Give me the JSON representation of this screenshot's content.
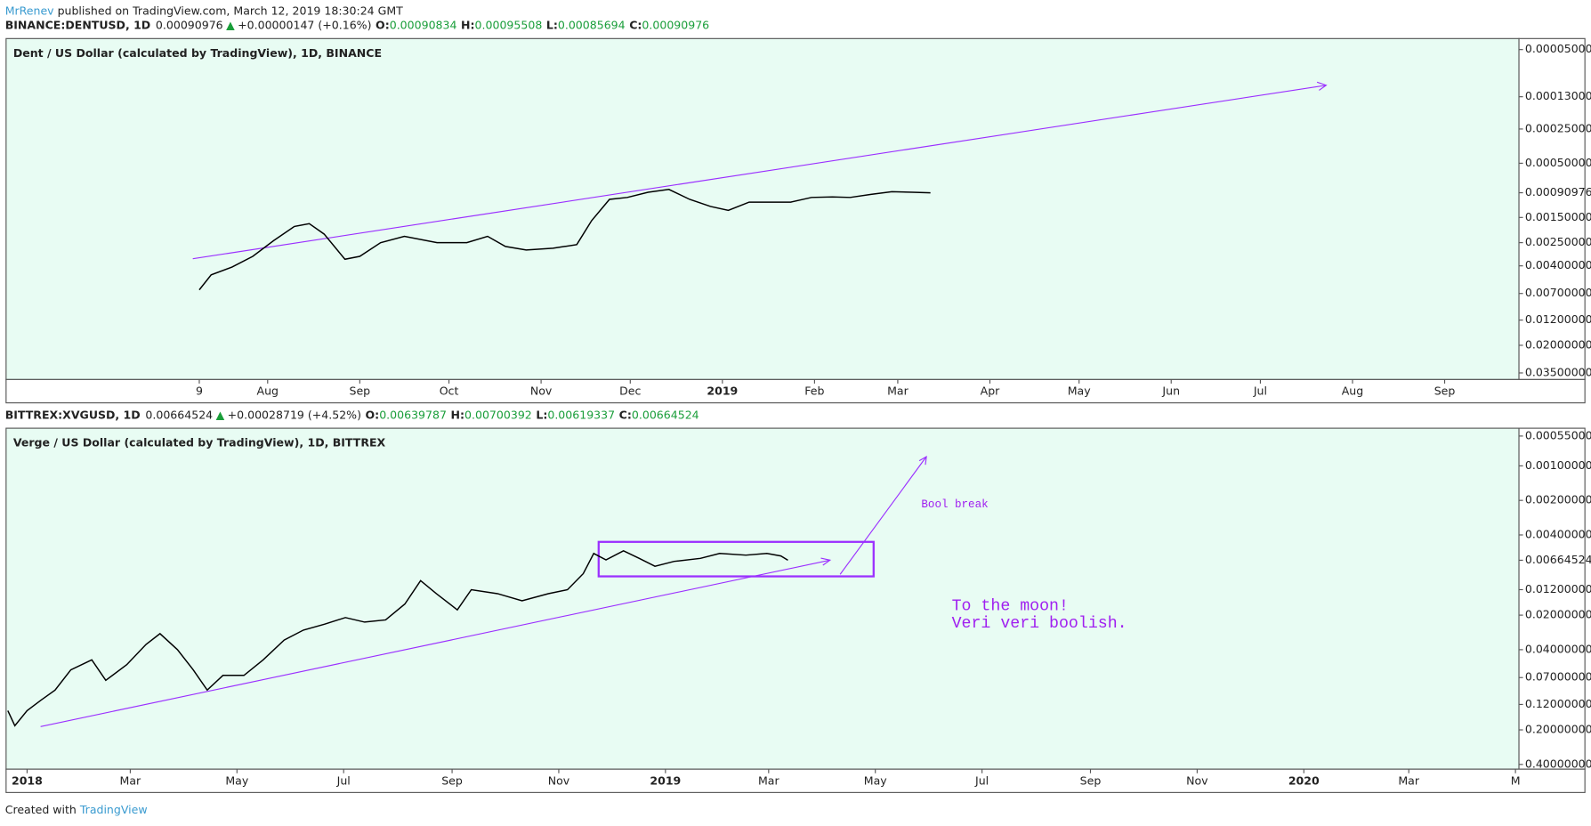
{
  "header": {
    "author": "MrRenev",
    "published": "published on TradingView.com, March 12, 2019 18:30:24 GMT"
  },
  "chart_data": [
    {
      "type": "line",
      "symbol": "BINANCE:DENTUSD, 1D",
      "change": "+0.00000147 (+0.16%)",
      "ohlc": [
        {
          "label": "O:",
          "value": "0.00090834"
        },
        {
          "label": "H:",
          "value": "0.00095508"
        },
        {
          "label": "L:",
          "value": "0.00085694"
        },
        {
          "label": "C:",
          "value": "0.00090976"
        }
      ],
      "title": "Dent / US Dollar (calculated by TradingView), 1D, BINANCE",
      "color": "#000000",
      "log_scale": true,
      "inverted": true,
      "ylim": [
        4e-05,
        0.04
      ],
      "yticks": [
        {
          "value": 5e-05,
          "label": "0.00005000"
        },
        {
          "value": 0.00013,
          "label": "0.00013000"
        },
        {
          "value": 0.00025,
          "label": "0.00025000"
        },
        {
          "value": 0.0005,
          "label": "0.00050000"
        },
        {
          "value": 0.0015,
          "label": "0.00150000"
        },
        {
          "value": 0.0025,
          "label": "0.00250000"
        },
        {
          "value": 0.004,
          "label": "0.00400000"
        },
        {
          "value": 0.007,
          "label": "0.00700000"
        },
        {
          "value": 0.012,
          "label": "0.01200000"
        },
        {
          "value": 0.02,
          "label": "0.02000000"
        },
        {
          "value": 0.035,
          "label": "0.03500000"
        }
      ],
      "xlim": [
        "2018-05-05",
        "2019-09-26"
      ],
      "xticks": [
        {
          "value": "2018-07-09",
          "label": "9"
        },
        {
          "value": "2018-08",
          "label": "Aug"
        },
        {
          "value": "2018-09",
          "label": "Sep"
        },
        {
          "value": "2018-10",
          "label": "Oct"
        },
        {
          "value": "2018-11",
          "label": "Nov"
        },
        {
          "value": "2018-12",
          "label": "Dec"
        },
        {
          "value": "2019-01",
          "label": "2019"
        },
        {
          "value": "2019-02",
          "label": "Feb"
        },
        {
          "value": "2019-03",
          "label": "Mar"
        },
        {
          "value": "2019-04",
          "label": "Apr"
        },
        {
          "value": "2019-05",
          "label": "May"
        },
        {
          "value": "2019-06",
          "label": "Jun"
        },
        {
          "value": "2019-07",
          "label": "Jul"
        },
        {
          "value": "2019-08",
          "label": "Aug"
        },
        {
          "value": "2019-09",
          "label": "Sep"
        }
      ],
      "x": [
        "2018-07-09",
        "2018-07-13",
        "2018-07-20",
        "2018-07-27",
        "2018-08-03",
        "2018-08-10",
        "2018-08-15",
        "2018-08-20",
        "2018-08-27",
        "2018-09-01",
        "2018-09-08",
        "2018-09-16",
        "2018-09-27",
        "2018-10-07",
        "2018-10-14",
        "2018-10-20",
        "2018-10-27",
        "2018-11-05",
        "2018-11-13",
        "2018-11-18",
        "2018-11-24",
        "2018-11-30",
        "2018-12-07",
        "2018-12-14",
        "2018-12-21",
        "2018-12-28",
        "2019-01-03",
        "2019-01-10",
        "2019-01-17",
        "2019-01-24",
        "2019-01-31",
        "2019-02-07",
        "2019-02-13",
        "2019-02-20",
        "2019-02-27",
        "2019-03-06",
        "2019-03-12"
      ],
      "values": [
        0.0065,
        0.0048,
        0.0041,
        0.0033,
        0.0024,
        0.0018,
        0.0017,
        0.0021,
        0.0035,
        0.0033,
        0.0025,
        0.0022,
        0.0025,
        0.0025,
        0.0022,
        0.0027,
        0.0029,
        0.0028,
        0.0026,
        0.0016,
        0.00104,
        0.001,
        0.0009,
        0.00085,
        0.00104,
        0.0012,
        0.0013,
        0.0011,
        0.0011,
        0.0011,
        0.001,
        0.00099,
        0.001,
        0.00094,
        0.00089,
        0.0009,
        0.00090976
      ]
    },
    {
      "type": "line",
      "symbol": "BITTREX:XVGUSD, 1D",
      "change": "+0.00028719 (+4.52%)",
      "ohlc": [
        {
          "label": "O:",
          "value": "0.00639787"
        },
        {
          "label": "H:",
          "value": "0.00700392"
        },
        {
          "label": "L:",
          "value": "0.00619337"
        },
        {
          "label": "C:",
          "value": "0.00664524"
        }
      ],
      "title": "Verge / US Dollar (calculated by TradingView), 1D, BITTREX",
      "color": "#000000",
      "log_scale": true,
      "inverted": true,
      "ylim": [
        0.00047,
        0.44
      ],
      "yticks": [
        {
          "value": 0.00055,
          "label": "0.00055000"
        },
        {
          "value": 0.001,
          "label": "0.00100000"
        },
        {
          "value": 0.002,
          "label": "0.00200000"
        },
        {
          "value": 0.004,
          "label": "0.00400000"
        },
        {
          "value": 0.012,
          "label": "0.01200000"
        },
        {
          "value": 0.02,
          "label": "0.02000000"
        },
        {
          "value": 0.04,
          "label": "0.04000000"
        },
        {
          "value": 0.07,
          "label": "0.07000000"
        },
        {
          "value": 0.12,
          "label": "0.12000000"
        },
        {
          "value": 0.2,
          "label": "0.20000000"
        },
        {
          "value": 0.4,
          "label": "0.40000000"
        }
      ],
      "xlim": [
        "2017-12-20",
        "2020-05-03"
      ],
      "xticks": [
        {
          "value": "2018-01",
          "label": "2018"
        },
        {
          "value": "2018-03",
          "label": "Mar"
        },
        {
          "value": "2018-05",
          "label": "May"
        },
        {
          "value": "2018-07",
          "label": "Jul"
        },
        {
          "value": "2018-09",
          "label": "Sep"
        },
        {
          "value": "2018-11",
          "label": "Nov"
        },
        {
          "value": "2019-01",
          "label": "2019"
        },
        {
          "value": "2019-03",
          "label": "Mar"
        },
        {
          "value": "2019-05",
          "label": "May"
        },
        {
          "value": "2019-07",
          "label": "Jul"
        },
        {
          "value": "2019-09",
          "label": "Sep"
        },
        {
          "value": "2019-11",
          "label": "Nov"
        },
        {
          "value": "2020-01",
          "label": "2020"
        },
        {
          "value": "2020-03",
          "label": "Mar"
        },
        {
          "value": "2020-05",
          "label": "M"
        }
      ],
      "x": [
        "2017-12-21",
        "2017-12-25",
        "2018-01-01",
        "2018-01-09",
        "2018-01-17",
        "2018-01-26",
        "2018-02-07",
        "2018-02-15",
        "2018-02-27",
        "2018-03-10",
        "2018-03-18",
        "2018-03-28",
        "2018-04-06",
        "2018-04-14",
        "2018-04-23",
        "2018-05-05",
        "2018-05-16",
        "2018-05-28",
        "2018-06-08",
        "2018-06-20",
        "2018-07-02",
        "2018-07-13",
        "2018-07-25",
        "2018-08-05",
        "2018-08-14",
        "2018-08-23",
        "2018-09-04",
        "2018-09-12",
        "2018-09-27",
        "2018-10-11",
        "2018-10-26",
        "2018-11-06",
        "2018-11-15",
        "2018-11-21",
        "2018-11-28",
        "2018-12-08",
        "2018-12-17",
        "2018-12-26",
        "2019-01-06",
        "2019-01-21",
        "2019-02-01",
        "2019-02-16",
        "2019-02-28",
        "2019-03-08",
        "2019-03-12"
      ],
      "values": [
        0.136,
        0.184,
        0.136,
        0.11,
        0.09,
        0.06,
        0.049,
        0.074,
        0.054,
        0.036,
        0.029,
        0.04,
        0.06,
        0.09,
        0.067,
        0.067,
        0.049,
        0.033,
        0.027,
        0.024,
        0.021,
        0.023,
        0.022,
        0.016,
        0.01,
        0.013,
        0.018,
        0.012,
        0.013,
        0.015,
        0.013,
        0.012,
        0.0087,
        0.0058,
        0.0066,
        0.0055,
        0.0064,
        0.0075,
        0.0068,
        0.0064,
        0.0058,
        0.006,
        0.0058,
        0.0061,
        0.00664524
      ],
      "annotations": [
        "Bool break",
        "To the moon!",
        "Veri veri boolish."
      ]
    }
  ],
  "footer": {
    "text": "Created with",
    "brand": "TradingView"
  }
}
